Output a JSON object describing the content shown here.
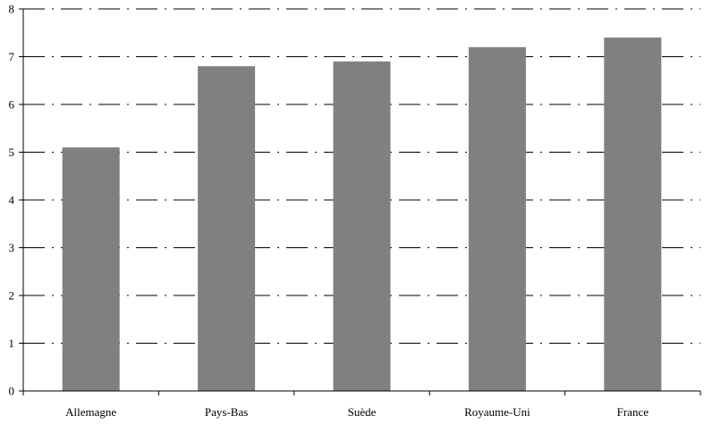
{
  "chart_data": {
    "type": "bar",
    "categories": [
      "Allemagne",
      "Pays-Bas",
      "Suède",
      "Royaume-Uni",
      "France"
    ],
    "values": [
      5.1,
      6.8,
      6.9,
      7.2,
      7.4
    ],
    "ylim": [
      0,
      8
    ],
    "yticks": [
      0,
      1,
      2,
      3,
      4,
      5,
      6,
      7,
      8
    ],
    "grid": "horizontal dashed",
    "bar_color": "#808080",
    "title": "",
    "xlabel": "",
    "ylabel": ""
  }
}
